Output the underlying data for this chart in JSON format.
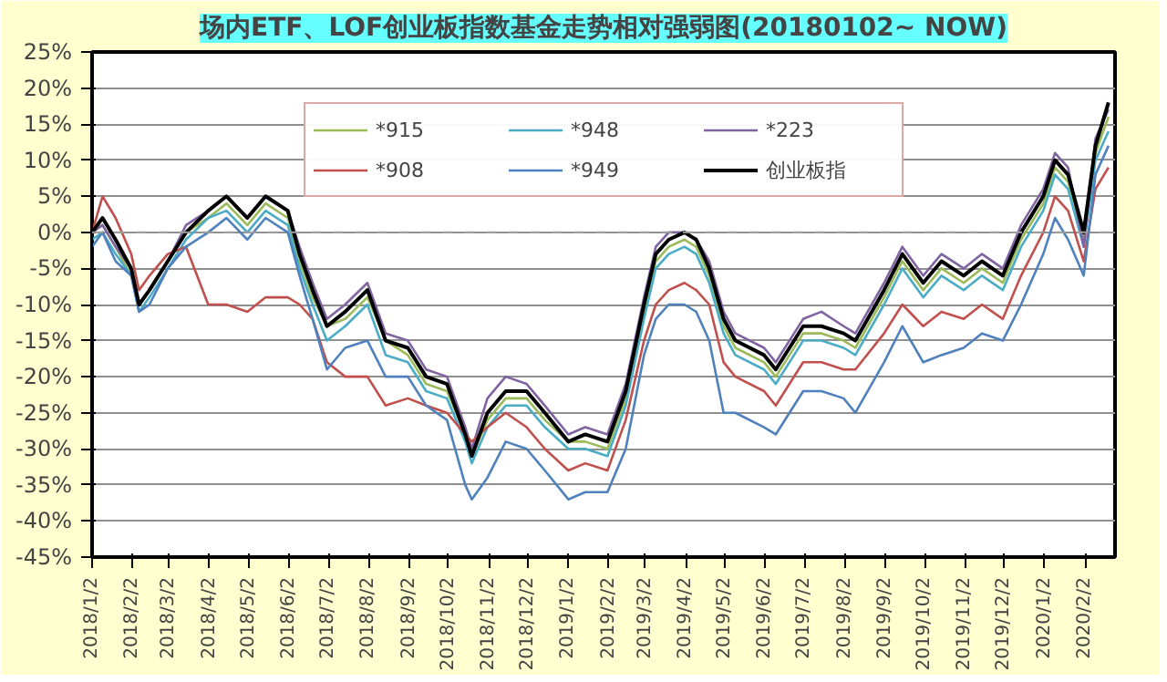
{
  "chart_data": {
    "type": "line",
    "title": "场内ETF、LOF创业板指数基金走势相对强弱图(20180102~ NOW)",
    "x": [
      "2018-01-02",
      "2018-01-10",
      "2018-01-20",
      "2018-02-01",
      "2018-02-07",
      "2018-02-15",
      "2018-03-01",
      "2018-03-15",
      "2018-04-01",
      "2018-04-15",
      "2018-05-01",
      "2018-05-15",
      "2018-06-01",
      "2018-06-10",
      "2018-06-20",
      "2018-07-01",
      "2018-07-15",
      "2018-08-01",
      "2018-08-15",
      "2018-09-01",
      "2018-09-15",
      "2018-10-01",
      "2018-10-15",
      "2018-10-20",
      "2018-11-01",
      "2018-11-15",
      "2018-12-01",
      "2018-12-15",
      "2019-01-02",
      "2019-01-15",
      "2019-02-01",
      "2019-02-15",
      "2019-03-01",
      "2019-03-10",
      "2019-03-20",
      "2019-04-01",
      "2019-04-10",
      "2019-04-20",
      "2019-05-01",
      "2019-05-10",
      "2019-06-01",
      "2019-06-10",
      "2019-07-01",
      "2019-07-15",
      "2019-08-01",
      "2019-08-10",
      "2019-09-01",
      "2019-09-15",
      "2019-10-01",
      "2019-10-15",
      "2019-11-01",
      "2019-11-15",
      "2019-12-01",
      "2019-12-15",
      "2020-01-01",
      "2020-01-10",
      "2020-01-20",
      "2020-02-01",
      "2020-02-10",
      "2020-02-20"
    ],
    "series": [
      {
        "name": "*915",
        "color": "#9bbb59",
        "values": [
          0,
          1,
          -2,
          -6,
          -10,
          -8,
          -4,
          0,
          2,
          4,
          1,
          4,
          2,
          -4,
          -9,
          -13,
          -12,
          -9,
          -15,
          -17,
          -21,
          -22,
          -28,
          -31,
          -26,
          -23,
          -23,
          -26,
          -29,
          -29,
          -30,
          -23,
          -11,
          -4,
          -2,
          -1,
          -2,
          -6,
          -13,
          -16,
          -18,
          -20,
          -14,
          -14,
          -15,
          -16,
          -9,
          -4,
          -8,
          -5,
          -7,
          -5,
          -7,
          -1,
          4,
          9,
          7,
          -1,
          11,
          16
        ]
      },
      {
        "name": "*948",
        "color": "#4bacc6",
        "values": [
          -1,
          0,
          -3,
          -6,
          -11,
          -9,
          -5,
          -1,
          2,
          3,
          0,
          3,
          1,
          -5,
          -10,
          -15,
          -13,
          -10,
          -17,
          -18,
          -22,
          -23,
          -29,
          -32,
          -27,
          -24,
          -24,
          -27,
          -30,
          -30,
          -31,
          -24,
          -12,
          -5,
          -3,
          -2,
          -3,
          -7,
          -14,
          -17,
          -19,
          -21,
          -15,
          -15,
          -16,
          -17,
          -10,
          -5,
          -9,
          -6,
          -8,
          -6,
          -8,
          -2,
          3,
          8,
          6,
          -2,
          10,
          14
        ]
      },
      {
        "name": "*223",
        "color": "#8064a2",
        "values": [
          0,
          1,
          -2,
          -5,
          -10,
          -8,
          -4,
          1,
          3,
          5,
          2,
          5,
          3,
          -2,
          -7,
          -12,
          -10,
          -7,
          -14,
          -15,
          -19,
          -20,
          -27,
          -30,
          -23,
          -20,
          -21,
          -24,
          -28,
          -27,
          -28,
          -21,
          -9,
          -2,
          0,
          0,
          -1,
          -4,
          -11,
          -14,
          -16,
          -18,
          -12,
          -11,
          -13,
          -14,
          -7,
          -2,
          -6,
          -3,
          -5,
          -3,
          -5,
          1,
          6,
          11,
          9,
          -2,
          13,
          17
        ]
      },
      {
        "name": "*908",
        "color": "#c0504d",
        "values": [
          0,
          5,
          2,
          -3,
          -8,
          -6,
          -3,
          -2,
          -10,
          -10,
          -11,
          -9,
          -9,
          -10,
          -12,
          -18,
          -20,
          -20,
          -24,
          -23,
          -24,
          -25,
          -28,
          -29,
          -27,
          -25,
          -27,
          -30,
          -33,
          -32,
          -33,
          -26,
          -15,
          -10,
          -8,
          -7,
          -8,
          -10,
          -18,
          -20,
          -22,
          -24,
          -18,
          -18,
          -19,
          -19,
          -14,
          -10,
          -13,
          -11,
          -12,
          -10,
          -12,
          -6,
          0,
          5,
          3,
          -4,
          6,
          9
        ]
      },
      {
        "name": "*949",
        "color": "#4f81bd",
        "values": [
          -2,
          0,
          -4,
          -6,
          -11,
          -10,
          -5,
          -2,
          0,
          2,
          -1,
          2,
          0,
          -6,
          -12,
          -19,
          -16,
          -15,
          -20,
          -20,
          -24,
          -26,
          -35,
          -37,
          -34,
          -29,
          -30,
          -33,
          -37,
          -36,
          -36,
          -30,
          -17,
          -12,
          -10,
          -10,
          -11,
          -15,
          -25,
          -25,
          -27,
          -28,
          -22,
          -22,
          -23,
          -25,
          -18,
          -13,
          -18,
          -17,
          -16,
          -14,
          -15,
          -10,
          -3,
          2,
          -1,
          -6,
          8,
          12
        ]
      },
      {
        "name": "创业板指",
        "color": "#000000",
        "values": [
          0,
          2,
          -1,
          -5,
          -10,
          -8,
          -4,
          0,
          3,
          5,
          2,
          5,
          3,
          -3,
          -8,
          -13,
          -11,
          -8,
          -15,
          -16,
          -20,
          -21,
          -28,
          -31,
          -25,
          -22,
          -22,
          -25,
          -29,
          -28,
          -29,
          -22,
          -10,
          -3,
          -1,
          0,
          -1,
          -5,
          -12,
          -15,
          -17,
          -19,
          -13,
          -13,
          -14,
          -15,
          -8,
          -3,
          -7,
          -4,
          -6,
          -4,
          -6,
          0,
          5,
          10,
          8,
          0,
          12,
          18
        ]
      }
    ],
    "ylim": [
      -45,
      25
    ],
    "yticks": [
      {
        "value": -45,
        "label": "-45%"
      },
      {
        "value": -40,
        "label": "-40%"
      },
      {
        "value": -35,
        "label": "-35%"
      },
      {
        "value": -30,
        "label": "-30%"
      },
      {
        "value": -25,
        "label": "-25%"
      },
      {
        "value": -20,
        "label": "-20%"
      },
      {
        "value": -15,
        "label": "-15%"
      },
      {
        "value": -10,
        "label": "-10%"
      },
      {
        "value": -5,
        "label": "-5%"
      },
      {
        "value": 0,
        "label": "0%"
      },
      {
        "value": 5,
        "label": "5%"
      },
      {
        "value": 10,
        "label": "10%"
      },
      {
        "value": 15,
        "label": "15%"
      },
      {
        "value": 20,
        "label": "20%"
      },
      {
        "value": 25,
        "label": "25%"
      }
    ],
    "xlim": [
      "2018-01-02",
      "2020-02-25"
    ],
    "xticks": [
      {
        "value": "2018-01-02",
        "label": "2018/1/2"
      },
      {
        "value": "2018-02-02",
        "label": "2018/2/2"
      },
      {
        "value": "2018-03-02",
        "label": "2018/3/2"
      },
      {
        "value": "2018-04-02",
        "label": "2018/4/2"
      },
      {
        "value": "2018-05-02",
        "label": "2018/5/2"
      },
      {
        "value": "2018-06-02",
        "label": "2018/6/2"
      },
      {
        "value": "2018-07-02",
        "label": "2018/7/2"
      },
      {
        "value": "2018-08-02",
        "label": "2018/8/2"
      },
      {
        "value": "2018-09-02",
        "label": "2018/9/2"
      },
      {
        "value": "2018-10-02",
        "label": "2018/10/2"
      },
      {
        "value": "2018-11-02",
        "label": "2018/11/2"
      },
      {
        "value": "2018-12-02",
        "label": "2018/12/2"
      },
      {
        "value": "2019-01-02",
        "label": "2019/1/2"
      },
      {
        "value": "2019-02-02",
        "label": "2019/2/2"
      },
      {
        "value": "2019-03-02",
        "label": "2019/3/2"
      },
      {
        "value": "2019-04-02",
        "label": "2019/4/2"
      },
      {
        "value": "2019-05-02",
        "label": "2019/5/2"
      },
      {
        "value": "2019-06-02",
        "label": "2019/6/2"
      },
      {
        "value": "2019-07-02",
        "label": "2019/7/2"
      },
      {
        "value": "2019-08-02",
        "label": "2019/8/2"
      },
      {
        "value": "2019-09-02",
        "label": "2019/9/2"
      },
      {
        "value": "2019-10-02",
        "label": "2019/10/2"
      },
      {
        "value": "2019-11-02",
        "label": "2019/11/2"
      },
      {
        "value": "2019-12-02",
        "label": "2019/12/2"
      },
      {
        "value": "2020-01-02",
        "label": "2020/1/2"
      },
      {
        "value": "2020-02-02",
        "label": "2020/2/2"
      }
    ],
    "ref_lines": [
      {
        "axis": "y",
        "value": 0,
        "color": "#a0a0a0",
        "line_style": "dashed"
      }
    ],
    "grid": "y",
    "legend": "top",
    "marker": "none",
    "line_style": "solid"
  }
}
